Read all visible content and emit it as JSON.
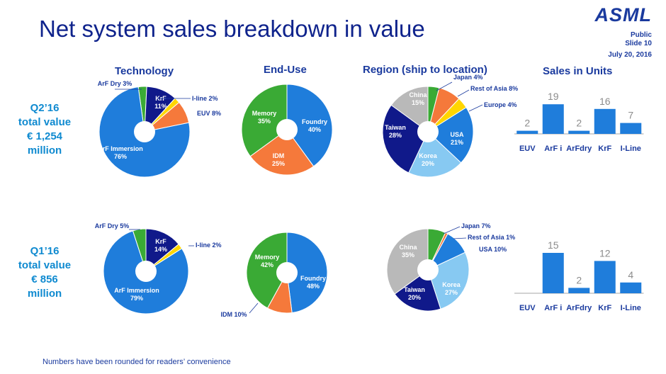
{
  "header": {
    "title": "Net system sales breakdown in value",
    "logo": "ASML",
    "public": "Public",
    "slide": "Slide 10",
    "date": "July 20, 2016"
  },
  "columns": {
    "technology": "Technology",
    "end_use": "End-Use",
    "region": "Region (ship to location)",
    "units": "Sales in Units"
  },
  "periods": [
    {
      "line1": "Q2’16",
      "line2": "total value",
      "line3": "€ 1,254",
      "line4": "million"
    },
    {
      "line1": "Q1’16",
      "line2": "total value",
      "line3": "€ 856",
      "line4": "million"
    }
  ],
  "footnote": "Numbers have been rounded for readers’ convenience",
  "colors": {
    "dark_blue": "#10198a",
    "blue": "#1f7ddb",
    "light_blue": "#87c9f2",
    "green": "#3aaa35",
    "orange": "#f5793b",
    "yellow": "#ffd600",
    "gray": "#b9b9b9",
    "brand": "#1a3a9e",
    "accent": "#0f8ad0"
  },
  "chart_data": [
    {
      "type": "pie",
      "id": "tech-q2",
      "title": "Technology",
      "period": "Q2’16",
      "slices": [
        {
          "label": "ArF Dry 3%",
          "value": 3,
          "color": "#3aaa35"
        },
        {
          "label": "KrF",
          "pct": "11%",
          "value": 11,
          "color": "#10198a"
        },
        {
          "label": "I-line 2%",
          "value": 2,
          "color": "#ffd600"
        },
        {
          "label": "EUV 8%",
          "value": 8,
          "color": "#f5793b"
        },
        {
          "label": "ArF Immersion",
          "pct": "76%",
          "value": 76,
          "color": "#1f7ddb"
        }
      ]
    },
    {
      "type": "pie",
      "id": "enduse-q2",
      "title": "End-Use",
      "period": "Q2’16",
      "slices": [
        {
          "label": "Foundry",
          "pct": "40%",
          "value": 40,
          "color": "#1f7ddb"
        },
        {
          "label": "IDM",
          "pct": "25%",
          "value": 25,
          "color": "#f5793b"
        },
        {
          "label": "Memory",
          "pct": "35%",
          "value": 35,
          "color": "#3aaa35"
        }
      ]
    },
    {
      "type": "pie",
      "id": "region-q2",
      "title": "Region (ship to location)",
      "period": "Q2’16",
      "slices": [
        {
          "label": "Japan 4%",
          "value": 4,
          "color": "#3aaa35"
        },
        {
          "label": "Rest of Asia 8%",
          "value": 8,
          "color": "#f5793b"
        },
        {
          "label": "Europe 4%",
          "value": 4,
          "color": "#ffd600"
        },
        {
          "label": "USA",
          "pct": "21%",
          "value": 21,
          "color": "#1f7ddb"
        },
        {
          "label": "Korea",
          "pct": "20%",
          "value": 20,
          "color": "#87c9f2"
        },
        {
          "label": "Taiwan",
          "pct": "28%",
          "value": 28,
          "color": "#10198a"
        },
        {
          "label": "China",
          "pct": "15%",
          "value": 15,
          "color": "#b9b9b9"
        }
      ]
    },
    {
      "type": "bar",
      "id": "units-q2",
      "title": "Sales in Units",
      "period": "Q2’16",
      "categories": [
        "EUV",
        "ArF i",
        "ArFdry",
        "KrF",
        "I-Line"
      ],
      "values": [
        2,
        19,
        2,
        16,
        7
      ],
      "ylim": [
        0,
        20
      ],
      "color": "#1f7ddb"
    },
    {
      "type": "pie",
      "id": "tech-q1",
      "title": "Technology",
      "period": "Q1’16",
      "slices": [
        {
          "label": "ArF Dry 5%",
          "value": 5,
          "color": "#3aaa35"
        },
        {
          "label": "KrF",
          "pct": "14%",
          "value": 14,
          "color": "#10198a"
        },
        {
          "label": "I-line 2%",
          "value": 2,
          "color": "#ffd600"
        },
        {
          "label": "ArF Immersion",
          "pct": "79%",
          "value": 79,
          "color": "#1f7ddb"
        }
      ]
    },
    {
      "type": "pie",
      "id": "enduse-q1",
      "title": "End-Use",
      "period": "Q1’16",
      "slices": [
        {
          "label": "Foundry",
          "pct": "48%",
          "value": 48,
          "color": "#1f7ddb"
        },
        {
          "label": "IDM 10%",
          "value": 10,
          "color": "#f5793b"
        },
        {
          "label": "Memory",
          "pct": "42%",
          "value": 42,
          "color": "#3aaa35"
        }
      ]
    },
    {
      "type": "pie",
      "id": "region-q1",
      "title": "Region (ship to location)",
      "period": "Q1’16",
      "slices": [
        {
          "label": "Japan 7%",
          "value": 7,
          "color": "#3aaa35"
        },
        {
          "label": "Rest of Asia 1%",
          "value": 1,
          "color": "#f5793b"
        },
        {
          "label": "USA 10%",
          "value": 10,
          "color": "#1f7ddb"
        },
        {
          "label": "Korea",
          "pct": "27%",
          "value": 27,
          "color": "#87c9f2"
        },
        {
          "label": "Taiwan",
          "pct": "20%",
          "value": 20,
          "color": "#10198a"
        },
        {
          "label": "China",
          "pct": "35%",
          "value": 35,
          "color": "#b9b9b9"
        }
      ]
    },
    {
      "type": "bar",
      "id": "units-q1",
      "title": "Sales in Units",
      "period": "Q1’16",
      "categories": [
        "EUV",
        "ArF i",
        "ArFdry",
        "KrF",
        "I-Line"
      ],
      "values": [
        null,
        15,
        2,
        12,
        4
      ],
      "ylim": [
        0,
        20
      ],
      "color": "#1f7ddb"
    }
  ]
}
